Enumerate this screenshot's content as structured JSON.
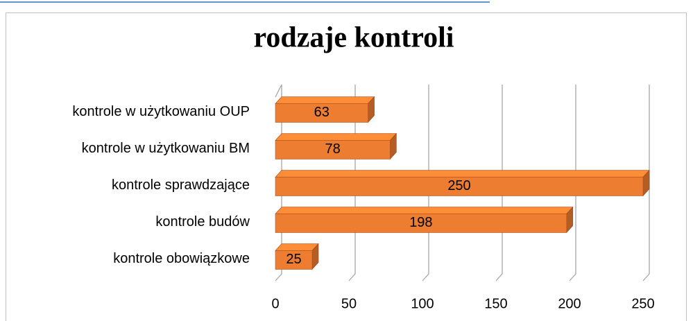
{
  "chart_data": {
    "type": "bar",
    "orientation": "horizontal",
    "title": "rodzaje kontroli",
    "categories": [
      "kontrole w użytkowaniu OUP",
      "kontrole w użytkowaniu BM",
      "kontrole sprawdzające",
      "kontrole budów",
      "kontrole obowiązkowe"
    ],
    "values": [
      63,
      78,
      250,
      198,
      25
    ],
    "color": "#ED7D31",
    "xlim": [
      0,
      250
    ],
    "xticks": [
      0,
      50,
      100,
      150,
      200,
      250
    ],
    "grid": true
  }
}
